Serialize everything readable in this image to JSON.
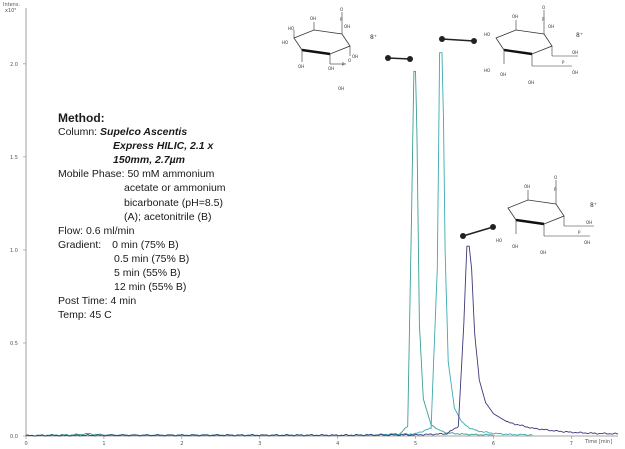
{
  "chart_data": {
    "type": "line",
    "y_axis_title": [
      "Intens.",
      "x10⁵"
    ],
    "x_axis_title": "Time [min]",
    "x_ticks": [
      "0",
      "1",
      "2",
      "3",
      "4",
      "5",
      "6",
      "7"
    ],
    "y_ticks": [
      "0.0",
      "0.5",
      "1.0",
      "1.5",
      "2.0"
    ],
    "xlim": [
      0,
      7.6
    ],
    "ylim": [
      0,
      2.3
    ],
    "grid": false,
    "series": [
      {
        "color": "#3a9e96",
        "x": [
          0,
          0.3,
          0.6,
          0.8,
          1.0,
          1.5,
          2.0,
          2.5,
          3.0,
          3.5,
          4.0,
          4.5,
          4.8,
          4.9,
          4.95,
          4.98,
          5.0,
          5.02,
          5.05,
          5.1,
          5.2,
          5.3,
          5.4,
          5.6,
          5.8,
          6.0
        ],
        "y": [
          0,
          0.003,
          0.004,
          0.01,
          0.003,
          0.002,
          0.002,
          0.003,
          0.002,
          0.003,
          0.002,
          0.005,
          0.01,
          0.05,
          1.2,
          1.96,
          1.96,
          1.6,
          0.6,
          0.2,
          0.06,
          0.03,
          0.015,
          0.008,
          0.005,
          0.004
        ]
      },
      {
        "color": "#3aaab2",
        "x": [
          0,
          1,
          2,
          3,
          4,
          4.5,
          5.0,
          5.2,
          5.28,
          5.31,
          5.34,
          5.36,
          5.38,
          5.42,
          5.5,
          5.6,
          5.7,
          5.8,
          6.0,
          6.2,
          6.5
        ],
        "y": [
          0,
          0.002,
          0.002,
          0.002,
          0.002,
          0.003,
          0.01,
          0.04,
          0.9,
          2.06,
          2.06,
          1.7,
          1.0,
          0.4,
          0.15,
          0.07,
          0.04,
          0.025,
          0.012,
          0.006,
          0.004
        ]
      },
      {
        "color": "#3c3a78",
        "x": [
          0,
          1,
          2,
          3,
          4,
          5,
          5.4,
          5.55,
          5.62,
          5.66,
          5.69,
          5.72,
          5.76,
          5.82,
          5.9,
          6.0,
          6.2,
          6.5,
          6.8,
          7.0,
          7.3,
          7.6
        ],
        "y": [
          0,
          0.002,
          0.002,
          0.002,
          0.002,
          0.004,
          0.01,
          0.05,
          0.6,
          1.02,
          1.02,
          0.9,
          0.55,
          0.3,
          0.18,
          0.12,
          0.07,
          0.04,
          0.025,
          0.018,
          0.012,
          0.01
        ]
      }
    ]
  },
  "method": {
    "header": "Method:",
    "column_label": "Column:",
    "column_value": [
      "Supelco Ascentis",
      "Express HILIC, 2.1 x",
      "150mm, 2.7µm"
    ],
    "mobile_phase_label": "Mobile Phase:",
    "mobile_phase_value": [
      "50 mM ammonium",
      "acetate or ammonium",
      "bicarbonate (pH=8.5)",
      "(A); acetonitrile (B)"
    ],
    "flow": "Flow: 0.6 ml/min",
    "gradient_label": "Gradient:",
    "gradient_steps": [
      "0 min (75% B)",
      "0.5 min (75% B)",
      "5 min (55% B)",
      "12 min (55% B)"
    ],
    "post_time": "Post Time: 4 min",
    "temp": "Temp: 45 C"
  },
  "structures": {
    "atom_oh": "OH",
    "atom_ho": "HO",
    "atom_o": "O",
    "atom_p": "P",
    "charge": "8⁺"
  }
}
